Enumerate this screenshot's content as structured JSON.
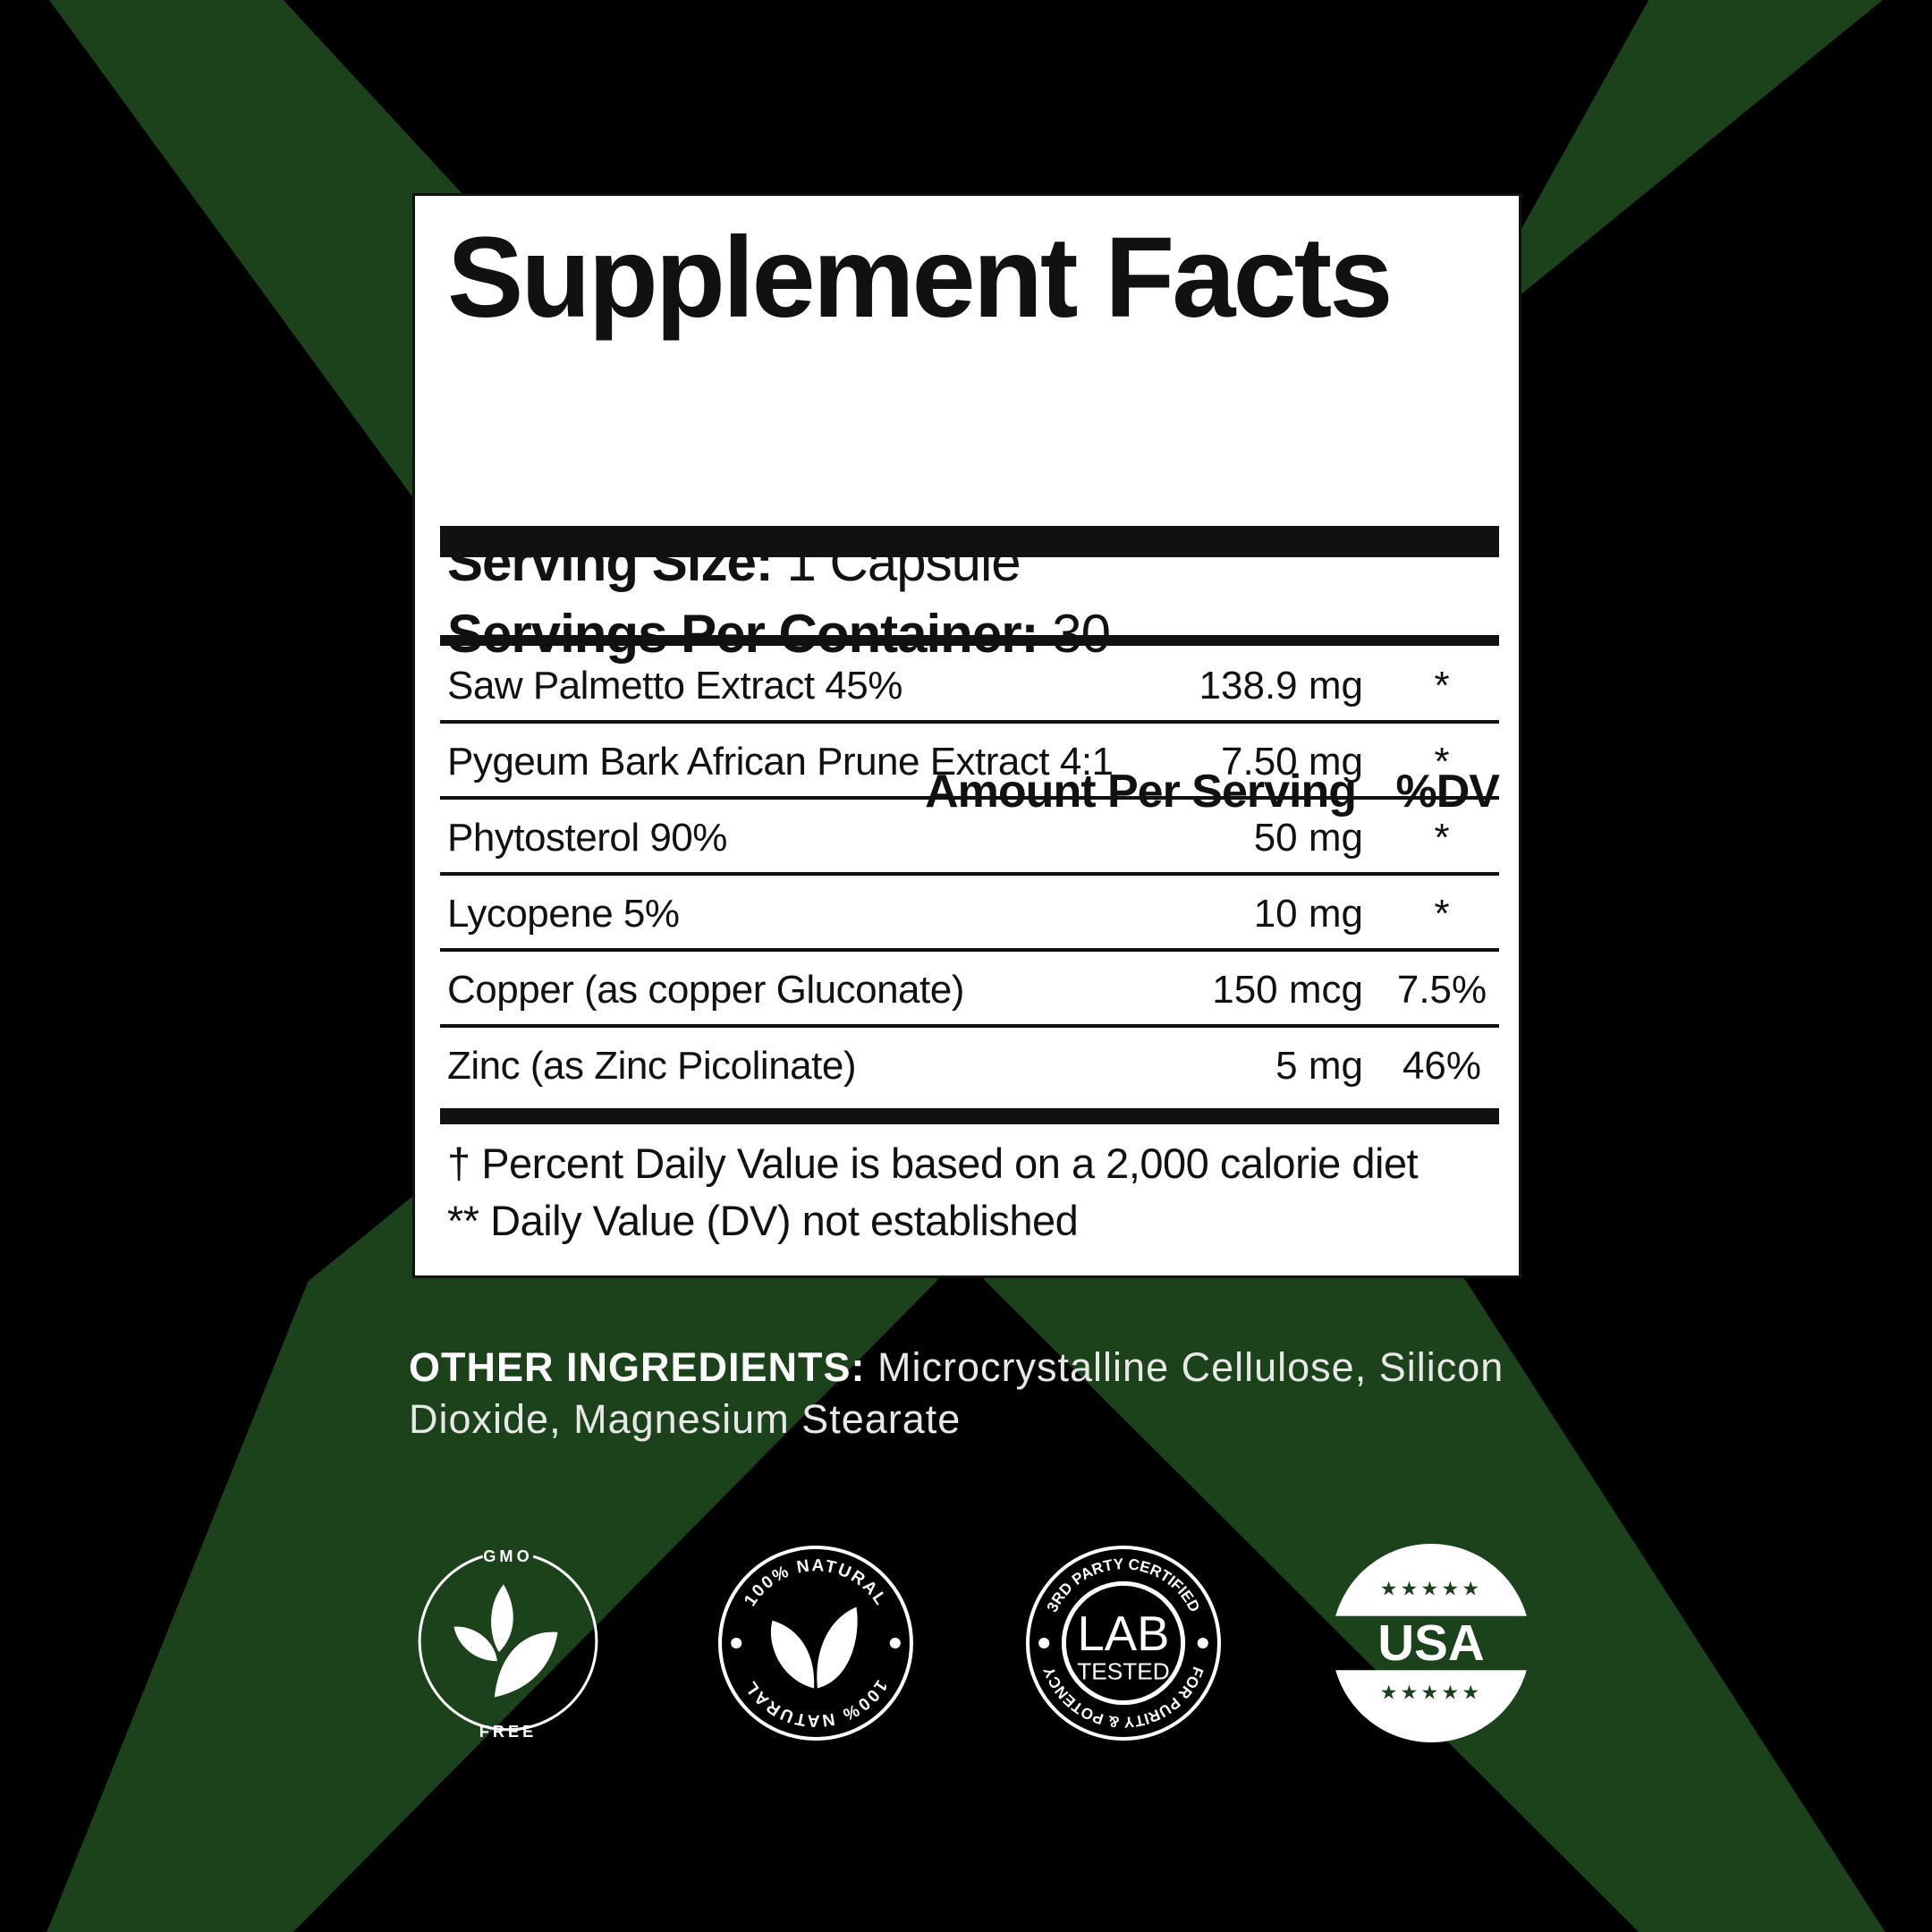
{
  "colors": {
    "background": "#000000",
    "stripe": "#1b421b",
    "panel": "#ffffff",
    "text": "#111111",
    "usa_star": "#1b421b"
  },
  "facts": {
    "title": "Supplement Facts",
    "serving_size_label": "Serving Size:",
    "serving_size_value": " 1 Capsule",
    "servings_label": "Servings Per Container:",
    "servings_value": " 30",
    "header_amount": "Amount Per Serving",
    "header_dv": "%DV",
    "rows": [
      {
        "name": "Saw Palmetto Extract 45%",
        "amount": "138.9 mg",
        "dv": "*"
      },
      {
        "name": "Pygeum Bark African Prune Extract 4:1",
        "amount": "7.50 mg",
        "dv": "*"
      },
      {
        "name": "Phytosterol 90%",
        "amount": "50 mg",
        "dv": "*"
      },
      {
        "name": "Lycopene 5%",
        "amount": "10 mg",
        "dv": "*"
      },
      {
        "name": "Copper (as copper Gluconate)",
        "amount": "150 mcg",
        "dv": "7.5%"
      },
      {
        "name": "Zinc (as Zinc Picolinate)",
        "amount": "5 mg",
        "dv": "46%"
      }
    ],
    "footnote_1": "† Percent Daily Value is based on a 2,000 calorie diet",
    "footnote_2": "** Daily Value (DV) not established"
  },
  "other_ingredients": {
    "label": "OTHER INGREDIENTS:",
    "value": " Microcrystalline Cellulose, Silicon Dioxide, Magnesium Stearate"
  },
  "badges": {
    "gmo": {
      "top": "GMO",
      "bottom": "FREE",
      "icon": "leaves-icon"
    },
    "natural": {
      "top": "100% NATURAL",
      "bottom": "100% NATURAL",
      "icon": "leaf-icon"
    },
    "lab": {
      "top": "3RD PARTY CERTIFIED",
      "bottom": "FOR PURITY & POTENCY",
      "main": "LAB",
      "sub": "TESTED"
    },
    "usa": {
      "text": "USA",
      "stars": "★★★★★"
    }
  }
}
